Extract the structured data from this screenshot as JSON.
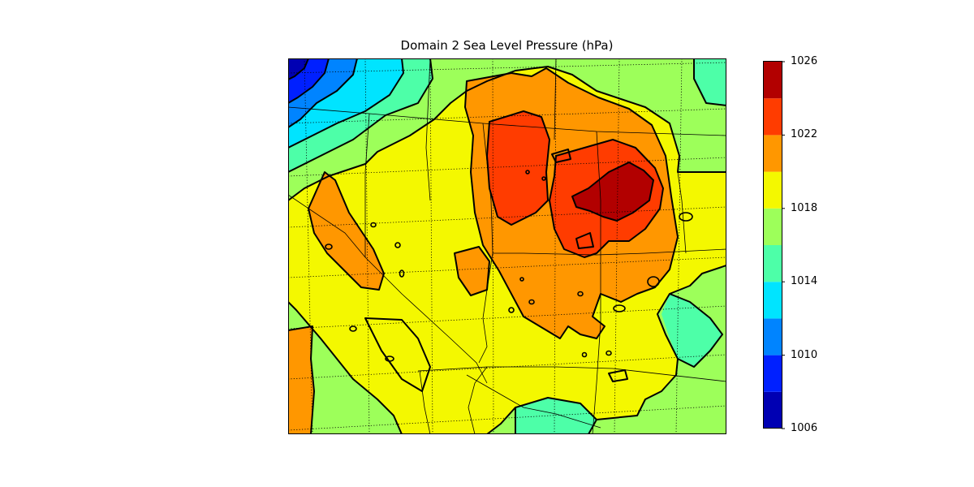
{
  "title": "Domain 2 Sea Level Pressure (hPa)",
  "colorbar": {
    "bounds": [
      1006,
      1008,
      1010,
      1012,
      1014,
      1016,
      1018,
      1020,
      1022,
      1024,
      1026
    ],
    "colors": [
      "#0000b3",
      "#0020ff",
      "#0084ff",
      "#00e4ff",
      "#4dffa8",
      "#9dff5a",
      "#f4f800",
      "#ff9700",
      "#ff3c00",
      "#b20000"
    ],
    "tick_labels": [
      "1006",
      "1010",
      "1014",
      "1018",
      "1022",
      "1026"
    ]
  },
  "map_colors": {
    "l1006": "#0000b3",
    "l1008": "#0020ff",
    "l1010": "#0084ff",
    "l1012": "#00e4ff",
    "l1014": "#4dffa8",
    "l1016": "#9dff5a",
    "l1018": "#f4f800",
    "l1020": "#ff9700",
    "l1022": "#ff3c00",
    "l1024": "#b20000",
    "contour_line": "#000000"
  }
}
